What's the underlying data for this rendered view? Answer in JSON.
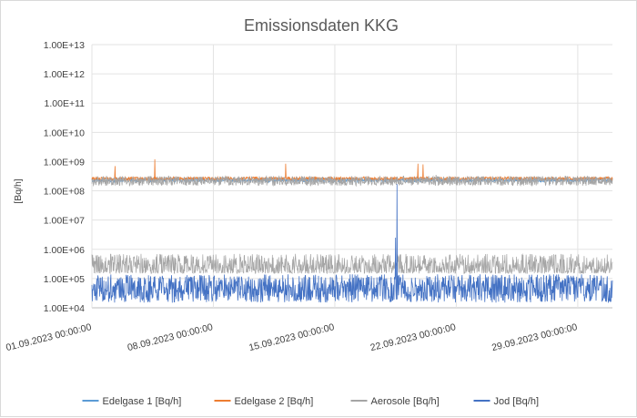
{
  "chart_data": {
    "type": "line",
    "title": "Emissionsdaten KKG",
    "ylabel": "[Bq/h]",
    "xlabel": "",
    "yscale": "log",
    "ylim": [
      10000,
      10000000000000
    ],
    "y_tick_labels": [
      "1.00E+04",
      "1.00E+05",
      "1.00E+06",
      "1.00E+07",
      "1.00E+08",
      "1.00E+09",
      "1.00E+10",
      "1.00E+11",
      "1.00E+12",
      "1.00E+13"
    ],
    "xlim": [
      "2023-09-01",
      "2023-10-01"
    ],
    "x_tick_labels": [
      "01.09.2023 00:00:00",
      "08.09.2023 00:00:00",
      "15.09.2023 00:00:00",
      "22.09.2023 00:00:00",
      "29.09.2023 00:00:00"
    ],
    "x_tick_dates": [
      "2023-09-01",
      "2023-09-08",
      "2023-09-15",
      "2023-09-22",
      "2023-09-29"
    ],
    "grid": true,
    "legend_position": "bottom",
    "series": [
      {
        "name": "Edelgase 1 [Bq/h]",
        "color": "#5b9bd5",
        "baseline_range": [
          200000000,
          270000000
        ],
        "peaks": []
      },
      {
        "name": "Edelgase 2 [Bq/h]",
        "color": "#ed7d31",
        "baseline_range": [
          230000000,
          300000000
        ],
        "peaks": [
          {
            "time": "2023-09-02 08:00",
            "value": 700000000
          },
          {
            "time": "2023-09-04 15:00",
            "value": 1200000000
          },
          {
            "time": "2023-09-12 04:00",
            "value": 850000000
          },
          {
            "time": "2023-09-19 19:00",
            "value": 850000000
          },
          {
            "time": "2023-09-20 02:00",
            "value": 800000000
          }
        ]
      },
      {
        "name": "Aerosole [Bq/h]",
        "color": "#a5a5a5",
        "baseline_range": [
          150000000,
          320000000
        ],
        "low_band_range": [
          150000,
          700000
        ],
        "peaks": [
          {
            "time": "2023-09-20 20:00",
            "value": 350000000
          }
        ]
      },
      {
        "name": "Jod [Bq/h]",
        "color": "#4472c4",
        "band_range": [
          15000,
          140000
        ],
        "peaks": [
          {
            "time": "2023-09-18 14:00",
            "value": 170000000
          },
          {
            "time": "2023-09-18 12:00",
            "value": 2500000
          }
        ]
      }
    ]
  }
}
